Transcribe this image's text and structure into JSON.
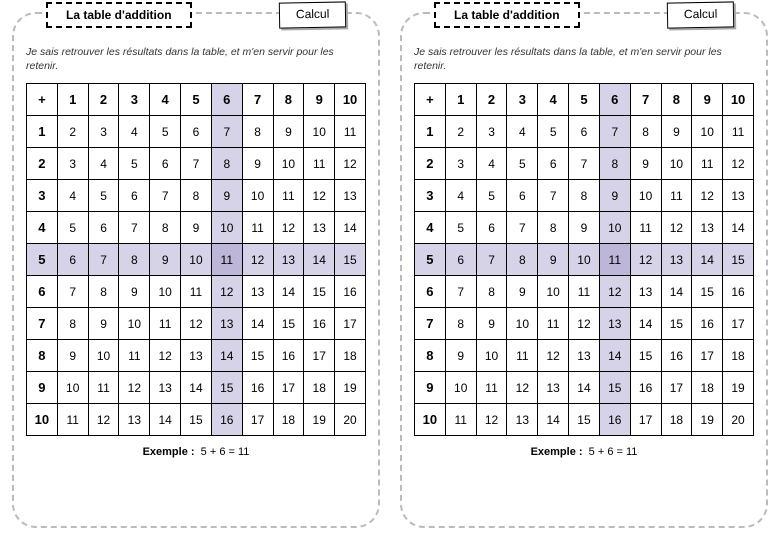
{
  "page": {
    "title": "La table d'addition",
    "badge": "Calcul",
    "subtitle": "Je sais retrouver les résultats dans la table, et m'en servir pour les retenir.",
    "example_label": "Exemple :",
    "example_value": "5 + 6 = 11"
  },
  "table": {
    "corner": "+",
    "headers": [
      "1",
      "2",
      "3",
      "4",
      "5",
      "6",
      "7",
      "8",
      "9",
      "10"
    ],
    "rows": [
      {
        "h": "1",
        "c": [
          "2",
          "3",
          "4",
          "5",
          "6",
          "7",
          "8",
          "9",
          "10",
          "11"
        ]
      },
      {
        "h": "2",
        "c": [
          "3",
          "4",
          "5",
          "6",
          "7",
          "8",
          "9",
          "10",
          "11",
          "12"
        ]
      },
      {
        "h": "3",
        "c": [
          "4",
          "5",
          "6",
          "7",
          "8",
          "9",
          "10",
          "11",
          "12",
          "13"
        ]
      },
      {
        "h": "4",
        "c": [
          "5",
          "6",
          "7",
          "8",
          "9",
          "10",
          "11",
          "12",
          "13",
          "14"
        ]
      },
      {
        "h": "5",
        "c": [
          "6",
          "7",
          "8",
          "9",
          "10",
          "11",
          "12",
          "13",
          "14",
          "15"
        ]
      },
      {
        "h": "6",
        "c": [
          "7",
          "8",
          "9",
          "10",
          "11",
          "12",
          "13",
          "14",
          "15",
          "16"
        ]
      },
      {
        "h": "7",
        "c": [
          "8",
          "9",
          "10",
          "11",
          "12",
          "13",
          "14",
          "15",
          "16",
          "17"
        ]
      },
      {
        "h": "8",
        "c": [
          "9",
          "10",
          "11",
          "12",
          "13",
          "14",
          "15",
          "16",
          "17",
          "18"
        ]
      },
      {
        "h": "9",
        "c": [
          "10",
          "11",
          "12",
          "13",
          "14",
          "15",
          "16",
          "17",
          "18",
          "19"
        ]
      },
      {
        "h": "10",
        "c": [
          "11",
          "12",
          "13",
          "14",
          "15",
          "16",
          "17",
          "18",
          "19",
          "20"
        ]
      }
    ],
    "highlight_col_index": 5,
    "highlight_row_index": 4
  },
  "colors": {
    "highlight": "#d6d2e8",
    "highlight_intersect": "#bdb6d8",
    "border_dash": "#bbbbbb"
  }
}
